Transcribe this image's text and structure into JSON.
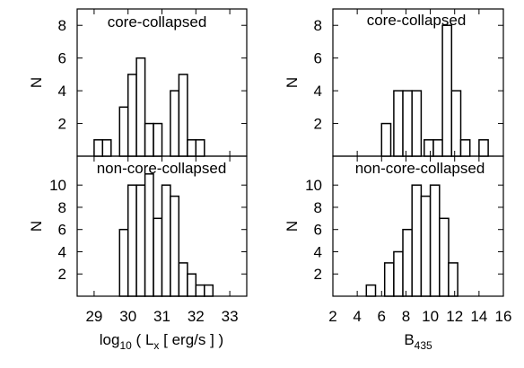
{
  "chart_data": [
    {
      "type": "bar",
      "panel_label": "core-collapsed",
      "ylabel": "N",
      "xlabel": "",
      "xlim": [
        28.5,
        33.5
      ],
      "ylim": [
        0,
        9
      ],
      "yticks": [
        2,
        4,
        6,
        8
      ],
      "xticks": [],
      "bin_width": 0.25,
      "x": [
        29.0,
        29.25,
        29.75,
        30.0,
        30.25,
        30.5,
        30.75,
        31.25,
        31.5,
        31.75,
        32.0
      ],
      "values": [
        1,
        1,
        3,
        5,
        6,
        2,
        2,
        4,
        5,
        1,
        1
      ]
    },
    {
      "type": "bar",
      "panel_label": "non-core-collapsed",
      "ylabel": "N",
      "xlabel": "log10 ( Lx [ erg/s ] )",
      "xlim": [
        28.5,
        33.5
      ],
      "ylim": [
        0,
        12.6
      ],
      "yticks": [
        2,
        4,
        6,
        8,
        10
      ],
      "xticks": [
        29,
        30,
        31,
        32,
        33
      ],
      "bin_width": 0.25,
      "x": [
        29.75,
        30.0,
        30.25,
        30.5,
        30.75,
        31.0,
        31.25,
        31.5,
        31.75,
        32.0,
        32.25
      ],
      "values": [
        6,
        10,
        10,
        11,
        7,
        10,
        9,
        3,
        2,
        1,
        1
      ]
    },
    {
      "type": "bar",
      "panel_label": "core-collapsed",
      "ylabel": "N",
      "xlabel": "",
      "xlim": [
        2,
        16
      ],
      "ylim": [
        0,
        9
      ],
      "yticks": [
        2,
        4,
        6,
        8
      ],
      "xticks": [],
      "bin_width": 0.75,
      "x": [
        6.0,
        7.0,
        7.75,
        8.5,
        9.5,
        10.25,
        11.0,
        11.75,
        12.5,
        14.0
      ],
      "values": [
        2,
        4,
        4,
        4,
        1,
        1,
        8,
        4,
        1,
        1
      ]
    },
    {
      "type": "bar",
      "panel_label": "non-core-collapsed",
      "ylabel": "N",
      "xlabel": "B435",
      "xlim": [
        2,
        16
      ],
      "ylim": [
        0,
        12.6
      ],
      "yticks": [
        2,
        4,
        6,
        8,
        10
      ],
      "xticks": [
        2,
        4,
        6,
        8,
        10,
        12,
        14,
        16
      ],
      "bin_width": 0.75,
      "x": [
        4.75,
        6.25,
        7.0,
        7.75,
        8.5,
        9.25,
        10.0,
        10.75,
        11.5,
        12.25
      ],
      "values": [
        1,
        3,
        4,
        6,
        10,
        9,
        10,
        7,
        3,
        0
      ]
    }
  ]
}
